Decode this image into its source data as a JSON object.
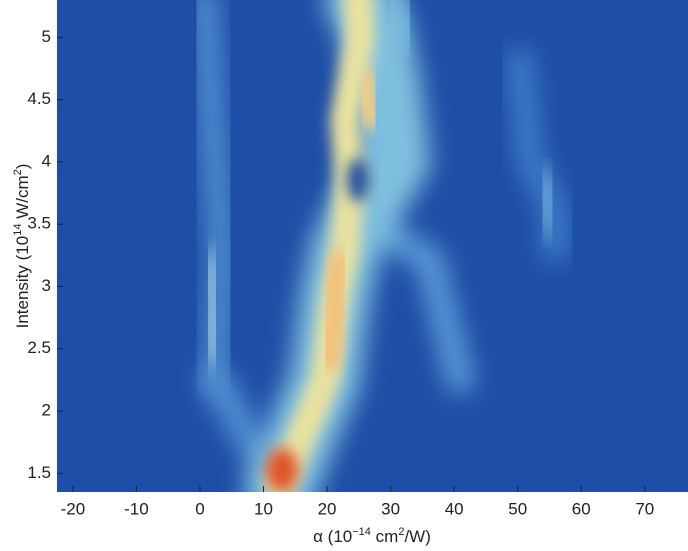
{
  "chart_data": {
    "type": "heatmap",
    "x_label": [
      "α (10",
      "−14",
      " cm",
      "2",
      "/W)"
    ],
    "y_label": [
      "Intensity (10",
      "14",
      " W/cm",
      "2",
      ")"
    ],
    "xlim": [
      -22.5,
      76.8
    ],
    "xticks": [
      -20,
      -10,
      0,
      10,
      20,
      30,
      40,
      50,
      60,
      70
    ],
    "ylim": [
      1.35,
      5.3
    ],
    "yticks": [
      1.5,
      2,
      2.5,
      3,
      3.5,
      4,
      4.5,
      5
    ]
  }
}
